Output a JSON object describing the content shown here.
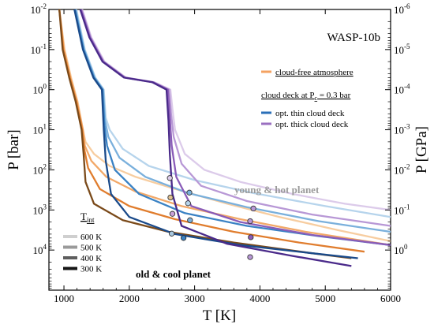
{
  "chart_data": {
    "type": "line",
    "title": "WASP-10b",
    "xlabel": "T [K]",
    "ylabel_left": "P [bar]",
    "ylabel_right": "P [GPa]",
    "xlim": [
      770,
      6000
    ],
    "ylim_left_bar": [
      0.01,
      100000
    ],
    "ylim_right_gpa": [
      1e-06,
      10
    ],
    "y_scale": "log",
    "y_inverted": true,
    "grid": false,
    "x_ticks": [
      {
        "v": 1000,
        "label": "1000"
      },
      {
        "v": 2000,
        "label": "2000"
      },
      {
        "v": 3000,
        "label": "3000"
      },
      {
        "v": 4000,
        "label": "4000"
      },
      {
        "v": 5000,
        "label": "5000"
      },
      {
        "v": 6000,
        "label": "6000"
      }
    ],
    "y_left_ticks": [
      {
        "e": -2,
        "b": "10",
        "s": "-2"
      },
      {
        "e": -1,
        "b": "10",
        "s": "-1"
      },
      {
        "e": 0,
        "b": "10",
        "s": "0"
      },
      {
        "e": 1,
        "b": "10",
        "s": "1"
      },
      {
        "e": 2,
        "b": "10",
        "s": "2"
      },
      {
        "e": 3,
        "b": "10",
        "s": "3"
      },
      {
        "e": 4,
        "b": "10",
        "s": "4"
      }
    ],
    "y_right_ticks": [
      {
        "e": -6,
        "b": "10",
        "s": "-6"
      },
      {
        "e": -5,
        "b": "10",
        "s": "-5"
      },
      {
        "e": -4,
        "b": "10",
        "s": "-4"
      },
      {
        "e": -3,
        "b": "10",
        "s": "-3"
      },
      {
        "e": -2,
        "b": "10",
        "s": "-2"
      },
      {
        "e": -1,
        "b": "10",
        "s": "-1"
      },
      {
        "e": 0,
        "b": "10",
        "s": "0"
      }
    ],
    "legend": {
      "placement": "top-right",
      "cloud_free_label": "cloud-free atmosphere",
      "cloud_deck_heading_pre": "cloud deck at P",
      "cloud_deck_heading_sub": "c",
      "cloud_deck_heading_post": " = 0.3 bar",
      "opt_thin_label": "opt. thin cloud deck",
      "opt_thick_label": "opt. thick cloud deck",
      "tint_label_main": "T",
      "tint_label_sub": "int",
      "tint_entries": [
        {
          "label": "600 K",
          "color": "#cfcfcf"
        },
        {
          "label": "500 K",
          "color": "#9a9a9a"
        },
        {
          "label": "400 K",
          "color": "#5e5e5e"
        },
        {
          "label": "300 K",
          "color": "#151515"
        }
      ]
    },
    "annotations": {
      "hot": "young & hot planet",
      "cool": "old & cool planet"
    },
    "colors": {
      "cloud_free": "#f4a261",
      "opt_thin": "#2a6fb8",
      "opt_thick": "#9a6fc0",
      "hot_annotation": "#9a9a9a"
    },
    "series": [
      {
        "group": "cloud_free",
        "tint": "600 K",
        "color": "#f7cda0",
        "points": [
          [
            930,
            0.01
          ],
          [
            1010,
            0.1
          ],
          [
            1110,
            0.5
          ],
          [
            1210,
            2
          ],
          [
            1290,
            10
          ],
          [
            1330,
            20
          ],
          [
            1460,
            40
          ],
          [
            1700,
            80
          ],
          [
            2100,
            150
          ],
          [
            2700,
            300
          ],
          [
            3500,
            700
          ],
          [
            4300,
            1500
          ],
          [
            5200,
            3200
          ],
          [
            6000,
            6000
          ]
        ]
      },
      {
        "group": "cloud_free",
        "tint": "500 K",
        "color": "#f2a868",
        "points": [
          [
            930,
            0.01
          ],
          [
            1000,
            0.1
          ],
          [
            1100,
            0.5
          ],
          [
            1200,
            2
          ],
          [
            1290,
            10
          ],
          [
            1320,
            25
          ],
          [
            1420,
            60
          ],
          [
            1650,
            150
          ],
          [
            2100,
            350
          ],
          [
            2800,
            800
          ],
          [
            3700,
            1700
          ],
          [
            4700,
            3500
          ],
          [
            6000,
            7500
          ]
        ]
      },
      {
        "group": "cloud_free",
        "tint": "400 K",
        "color": "#e07d2e",
        "points": [
          [
            930,
            0.01
          ],
          [
            990,
            0.1
          ],
          [
            1090,
            0.5
          ],
          [
            1190,
            2
          ],
          [
            1280,
            10
          ],
          [
            1310,
            30
          ],
          [
            1370,
            90
          ],
          [
            1550,
            300
          ],
          [
            2000,
            800
          ],
          [
            2700,
            1700
          ],
          [
            3600,
            3500
          ],
          [
            4600,
            6500
          ],
          [
            5600,
            11000
          ]
        ]
      },
      {
        "group": "cloud_free",
        "tint": "300 K",
        "color": "#7a4a1a",
        "points": [
          [
            930,
            0.01
          ],
          [
            980,
            0.1
          ],
          [
            1080,
            0.5
          ],
          [
            1180,
            2
          ],
          [
            1270,
            10
          ],
          [
            1300,
            40
          ],
          [
            1330,
            200
          ],
          [
            1460,
            700
          ],
          [
            1900,
            1800
          ],
          [
            2600,
            3500
          ],
          [
            3600,
            6500
          ],
          [
            4800,
            12000
          ],
          [
            5400,
            16000
          ]
        ]
      },
      {
        "group": "opt_thin",
        "tint": "600 K",
        "color": "#b6d4ec",
        "points": [
          [
            1190,
            0.01
          ],
          [
            1320,
            0.1
          ],
          [
            1480,
            0.5
          ],
          [
            1610,
            1
          ],
          [
            1640,
            5
          ],
          [
            1700,
            10
          ],
          [
            1900,
            30
          ],
          [
            2300,
            80
          ],
          [
            3000,
            180
          ],
          [
            3900,
            380
          ],
          [
            5000,
            800
          ],
          [
            6000,
            1500
          ]
        ]
      },
      {
        "group": "opt_thin",
        "tint": "500 K",
        "color": "#7ab0dc",
        "points": [
          [
            1180,
            0.01
          ],
          [
            1310,
            0.1
          ],
          [
            1470,
            0.5
          ],
          [
            1600,
            1
          ],
          [
            1630,
            6
          ],
          [
            1680,
            15
          ],
          [
            1850,
            50
          ],
          [
            2250,
            150
          ],
          [
            2900,
            380
          ],
          [
            3800,
            850
          ],
          [
            4900,
            1900
          ],
          [
            6000,
            3500
          ]
        ]
      },
      {
        "group": "opt_thin",
        "tint": "400 K",
        "color": "#3a82c4",
        "points": [
          [
            1170,
            0.01
          ],
          [
            1300,
            0.1
          ],
          [
            1460,
            0.5
          ],
          [
            1590,
            1
          ],
          [
            1620,
            8
          ],
          [
            1660,
            25
          ],
          [
            1780,
            100
          ],
          [
            2150,
            400
          ],
          [
            2850,
            1200
          ],
          [
            3800,
            2500
          ],
          [
            4900,
            4500
          ],
          [
            6000,
            7500
          ]
        ]
      },
      {
        "group": "opt_thin",
        "tint": "300 K",
        "color": "#1a4a8a",
        "points": [
          [
            1160,
            0.01
          ],
          [
            1290,
            0.1
          ],
          [
            1450,
            0.5
          ],
          [
            1580,
            1
          ],
          [
            1610,
            10
          ],
          [
            1640,
            60
          ],
          [
            1720,
            400
          ],
          [
            2000,
            1500
          ],
          [
            2700,
            4000
          ],
          [
            3700,
            7500
          ],
          [
            4800,
            12000
          ],
          [
            5500,
            16000
          ]
        ]
      },
      {
        "group": "opt_thick",
        "tint": "600 K",
        "color": "#dccbea",
        "points": [
          [
            1280,
            0.01
          ],
          [
            1420,
            0.05
          ],
          [
            1620,
            0.2
          ],
          [
            1950,
            0.5
          ],
          [
            2380,
            0.65
          ],
          [
            2630,
            1
          ],
          [
            2660,
            3
          ],
          [
            2700,
            10
          ],
          [
            2850,
            40
          ],
          [
            3150,
            100
          ],
          [
            3700,
            200
          ],
          [
            4500,
            400
          ],
          [
            5300,
            700
          ],
          [
            6000,
            1000
          ]
        ]
      },
      {
        "group": "opt_thick",
        "tint": "500 K",
        "color": "#b898d6",
        "points": [
          [
            1270,
            0.01
          ],
          [
            1410,
            0.05
          ],
          [
            1610,
            0.2
          ],
          [
            1940,
            0.5
          ],
          [
            2370,
            0.65
          ],
          [
            2610,
            1
          ],
          [
            2640,
            4
          ],
          [
            2680,
            15
          ],
          [
            2800,
            70
          ],
          [
            3100,
            250
          ],
          [
            3800,
            600
          ],
          [
            4800,
            1300
          ],
          [
            6000,
            2500
          ]
        ]
      },
      {
        "group": "opt_thick",
        "tint": "400 K",
        "color": "#8a5cb8",
        "points": [
          [
            1260,
            0.01
          ],
          [
            1400,
            0.05
          ],
          [
            1600,
            0.2
          ],
          [
            1930,
            0.5
          ],
          [
            2360,
            0.65
          ],
          [
            2590,
            1
          ],
          [
            2620,
            5
          ],
          [
            2650,
            25
          ],
          [
            2720,
            150
          ],
          [
            2950,
            800
          ],
          [
            3700,
            2000
          ],
          [
            4800,
            4200
          ],
          [
            6000,
            7500
          ]
        ]
      },
      {
        "group": "opt_thick",
        "tint": "300 K",
        "color": "#4a2a8a",
        "points": [
          [
            1250,
            0.01
          ],
          [
            1390,
            0.05
          ],
          [
            1590,
            0.2
          ],
          [
            1920,
            0.5
          ],
          [
            2350,
            0.65
          ],
          [
            2570,
            1
          ],
          [
            2600,
            6
          ],
          [
            2620,
            40
          ],
          [
            2660,
            400
          ],
          [
            2800,
            2500
          ],
          [
            3500,
            7000
          ],
          [
            4500,
            14000
          ],
          [
            5400,
            25000
          ]
        ]
      }
    ],
    "markers": [
      {
        "t": 2620,
        "p": 160,
        "color": "#dccbea"
      },
      {
        "t": 2920,
        "p": 370,
        "color": "#7ab0dc"
      },
      {
        "t": 3900,
        "p": 920,
        "color": "#b898d6"
      },
      {
        "t": 2630,
        "p": 490,
        "color": "#e0c090"
      },
      {
        "t": 2900,
        "p": 680,
        "color": "#b6d4ec"
      },
      {
        "t": 3850,
        "p": 1900,
        "color": "#b898d6"
      },
      {
        "t": 2660,
        "p": 1250,
        "color": "#c8a0d8"
      },
      {
        "t": 2930,
        "p": 1800,
        "color": "#7ab0dc"
      },
      {
        "t": 3860,
        "p": 4800,
        "color": "#8a5cb8"
      },
      {
        "t": 2650,
        "p": 3900,
        "color": "#a8c8e0"
      },
      {
        "t": 2830,
        "p": 5000,
        "color": "#3a82c4"
      },
      {
        "t": 3850,
        "p": 15000,
        "color": "#b898d6"
      }
    ]
  }
}
